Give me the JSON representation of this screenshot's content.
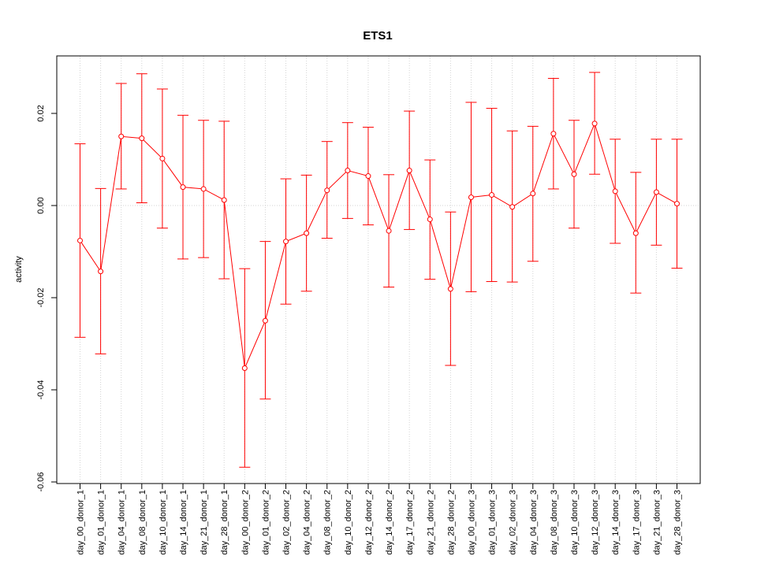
{
  "chart_data": {
    "type": "line",
    "title": "ETS1",
    "xlabel": "",
    "ylabel": "activity",
    "ylim": [
      -0.06,
      0.033
    ],
    "yticks": [
      -0.06,
      -0.04,
      -0.02,
      0.0,
      0.02
    ],
    "ytick_labels": [
      "-0.06",
      "-0.04",
      "-0.02",
      "0.00",
      "0.02"
    ],
    "grid": true,
    "color": "#ff0000",
    "categories": [
      "day_00_donor_1",
      "day_01_donor_1",
      "day_04_donor_1",
      "day_08_donor_1",
      "day_10_donor_1",
      "day_14_donor_1",
      "day_21_donor_1",
      "day_28_donor_1",
      "day_00_donor_2",
      "day_01_donor_2",
      "day_02_donor_2",
      "day_04_donor_2",
      "day_08_donor_2",
      "day_10_donor_2",
      "day_12_donor_2",
      "day_14_donor_2",
      "day_17_donor_2",
      "day_21_donor_2",
      "day_28_donor_2",
      "day_00_donor_3",
      "day_01_donor_3",
      "day_02_donor_3",
      "day_04_donor_3",
      "day_08_donor_3",
      "day_10_donor_3",
      "day_12_donor_3",
      "day_14_donor_3",
      "day_17_donor_3",
      "day_21_donor_3",
      "day_28_donor_3"
    ],
    "values": [
      -0.0076,
      -0.0143,
      0.015,
      0.0146,
      0.0102,
      0.004,
      0.0036,
      0.0012,
      -0.0353,
      -0.025,
      -0.0078,
      -0.006,
      0.0033,
      0.0076,
      0.0064,
      -0.0055,
      0.0076,
      -0.003,
      -0.0181,
      0.0018,
      0.0023,
      -0.0003,
      0.0026,
      0.0156,
      0.0068,
      0.0178,
      0.0031,
      -0.006,
      0.0029,
      0.0004
    ],
    "upper": [
      0.0134,
      0.0037,
      0.0265,
      0.0286,
      0.0253,
      0.0196,
      0.0185,
      0.0183,
      -0.0137,
      -0.0078,
      0.0058,
      0.0066,
      0.0139,
      0.018,
      0.017,
      0.0067,
      0.0205,
      0.0099,
      -0.0014,
      0.0224,
      0.0211,
      0.0162,
      0.0172,
      0.0276,
      0.0185,
      0.0289,
      0.0144,
      0.0072,
      0.0144,
      0.0144
    ],
    "lower": [
      -0.0286,
      -0.0322,
      0.0036,
      0.0006,
      -0.0049,
      -0.0116,
      -0.0113,
      -0.0159,
      -0.0568,
      -0.042,
      -0.0214,
      -0.0186,
      -0.0071,
      -0.0028,
      -0.0042,
      -0.0177,
      -0.0052,
      -0.016,
      -0.0347,
      -0.0187,
      -0.0165,
      -0.0166,
      -0.0121,
      0.0036,
      -0.0049,
      0.0068,
      -0.0082,
      -0.019,
      -0.0086,
      -0.0136
    ]
  }
}
